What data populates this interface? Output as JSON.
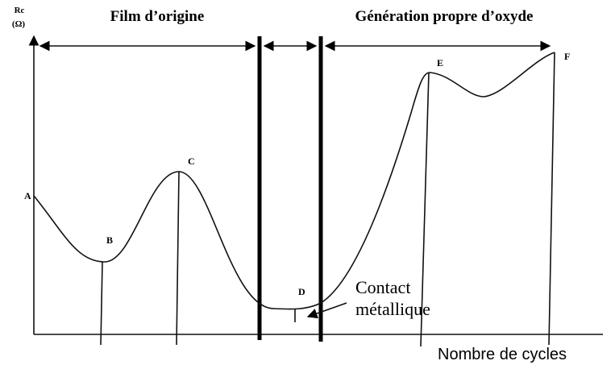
{
  "header": {
    "regions": [
      "Film d’origine",
      "Génération propre d’oxyde"
    ]
  },
  "axes": {
    "y_label": [
      "Rc",
      "(Ω)"
    ],
    "x_label": "Nombre de cycles"
  },
  "points": [
    {
      "label": "A"
    },
    {
      "label": "B"
    },
    {
      "label": "C"
    },
    {
      "label": "D"
    },
    {
      "label": "E"
    },
    {
      "label": "F"
    }
  ],
  "annotation": {
    "lines": [
      "Contact",
      "métallique"
    ]
  }
}
